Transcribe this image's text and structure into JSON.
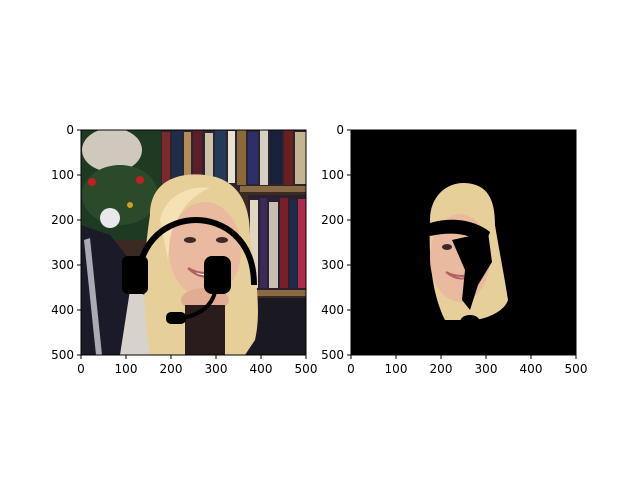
{
  "figure": {
    "panels": [
      {
        "id": "original",
        "xlim": [
          0,
          500
        ],
        "ylim_inverted": [
          0,
          500
        ]
      },
      {
        "id": "masked",
        "xlim": [
          0,
          500
        ],
        "ylim_inverted": [
          0,
          500
        ]
      }
    ]
  },
  "chart_data": [
    {
      "type": "image",
      "title": "",
      "xlabel": "",
      "ylabel": "",
      "xlim": [
        0,
        500
      ],
      "ylim": [
        500,
        0
      ],
      "xticks": [
        "0",
        "100",
        "200",
        "300",
        "400",
        "500"
      ],
      "yticks": [
        "0",
        "100",
        "200",
        "300",
        "400",
        "500"
      ],
      "content": "photo of a smiling blonde woman in front of a bookshelf and christmas tree, with a black headset icon overlaid",
      "colors": {
        "frame": "#000000",
        "overlay": "#000000"
      }
    },
    {
      "type": "image",
      "title": "",
      "xlabel": "",
      "ylabel": "",
      "xlim": [
        0,
        500
      ],
      "ylim": [
        500,
        0
      ],
      "xticks": [
        "0",
        "100",
        "200",
        "300",
        "400",
        "500"
      ],
      "yticks": [
        "0",
        "100",
        "200",
        "300",
        "400",
        "500"
      ],
      "content": "segmentation mask showing only the face region on black background, with headset shape removed",
      "colors": {
        "background": "#000000"
      }
    }
  ]
}
